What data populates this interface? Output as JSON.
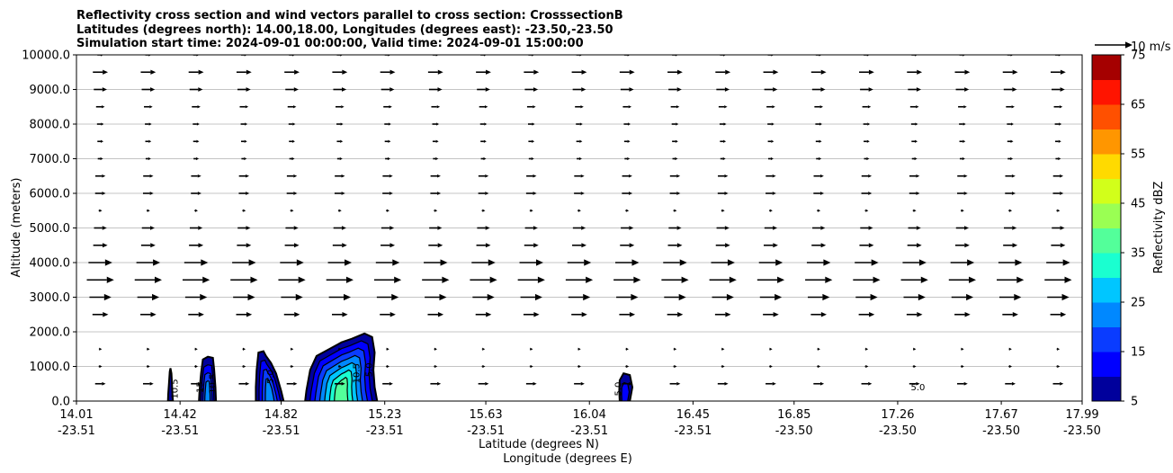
{
  "chart_data": {
    "type": "heatmap",
    "title_lines": [
      "Reflectivity cross section and wind vectors parallel to cross section: CrosssectionB",
      "Latitudes (degrees north): 14.00,18.00, Longitudes (degrees east): -23.50,-23.50",
      "Simulation start time: 2024-09-01 00:00:00, Valid time: 2024-09-01 15:00:00"
    ],
    "xlabel_primary": "Latitude (degrees N)",
    "xlabel_secondary": "Longitude (degrees E)",
    "ylabel": "Altitude (meters)",
    "xlim": [
      14.01,
      17.99
    ],
    "ylim": [
      0,
      10000
    ],
    "x_ticks": [
      {
        "value": 14.01,
        "lat": "14.01",
        "lon": "-23.51"
      },
      {
        "value": 14.42,
        "lat": "14.42",
        "lon": "-23.51"
      },
      {
        "value": 14.82,
        "lat": "14.82",
        "lon": "-23.51"
      },
      {
        "value": 15.23,
        "lat": "15.23",
        "lon": "-23.51"
      },
      {
        "value": 15.63,
        "lat": "15.63",
        "lon": "-23.51"
      },
      {
        "value": 16.04,
        "lat": "16.04",
        "lon": "-23.51"
      },
      {
        "value": 16.45,
        "lat": "16.45",
        "lon": "-23.51"
      },
      {
        "value": 16.85,
        "lat": "16.85",
        "lon": "-23.50"
      },
      {
        "value": 17.26,
        "lat": "17.26",
        "lon": "-23.50"
      },
      {
        "value": 17.67,
        "lat": "17.67",
        "lon": "-23.50"
      },
      {
        "value": 17.99,
        "lat": "17.99",
        "lon": "-23.50"
      }
    ],
    "y_ticks": [
      {
        "value": 0,
        "label": "0.0"
      },
      {
        "value": 1000,
        "label": "1000.0"
      },
      {
        "value": 2000,
        "label": "2000.0"
      },
      {
        "value": 3000,
        "label": "3000.0"
      },
      {
        "value": 4000,
        "label": "4000.0"
      },
      {
        "value": 5000,
        "label": "5000.0"
      },
      {
        "value": 6000,
        "label": "6000.0"
      },
      {
        "value": 7000,
        "label": "7000.0"
      },
      {
        "value": 8000,
        "label": "8000.0"
      },
      {
        "value": 9000,
        "label": "9000.0"
      },
      {
        "value": 10000,
        "label": "10000.0"
      }
    ],
    "grid": "horizontal",
    "colorbar": {
      "label": "Reflectivity dBZ",
      "range": [
        5,
        75
      ],
      "tick_labels": [
        "5",
        "15",
        "25",
        "35",
        "45",
        "55",
        "65",
        "75"
      ],
      "tick_values": [
        5,
        15,
        25,
        35,
        45,
        55,
        65,
        75
      ],
      "levels": [
        5,
        10,
        15,
        20,
        25,
        30,
        35,
        40,
        45,
        50,
        55,
        60,
        65,
        70,
        75
      ],
      "colors": [
        "#00009c",
        "#0000ff",
        "#0a3cff",
        "#0088ff",
        "#00c6ff",
        "#1affd0",
        "#53ff9a",
        "#9aff53",
        "#d2ff1a",
        "#ffda00",
        "#ff9600",
        "#ff5000",
        "#ff1400",
        "#a50000"
      ]
    },
    "wind_key": {
      "label": "10 m/s",
      "speed": 10
    },
    "wind_rows": [
      {
        "z": 500,
        "u": 2.8
      },
      {
        "z": 1000,
        "u": 0.9
      },
      {
        "z": 1500,
        "u": 0.8
      },
      {
        "z": 2500,
        "u": 4.2
      },
      {
        "z": 3000,
        "u": 5.8
      },
      {
        "z": 3500,
        "u": 7.2
      },
      {
        "z": 4000,
        "u": 6.3
      },
      {
        "z": 4500,
        "u": 3.8
      },
      {
        "z": 5000,
        "u": 3.4
      },
      {
        "z": 5500,
        "u": 0.9
      },
      {
        "z": 6000,
        "u": 2.8
      },
      {
        "z": 6500,
        "u": 2.7
      },
      {
        "z": 7000,
        "u": 1.4
      },
      {
        "z": 7500,
        "u": 1.6
      },
      {
        "z": 8000,
        "u": 1.8
      },
      {
        "z": 8500,
        "u": 2.3
      },
      {
        "z": 9000,
        "u": 3.5
      },
      {
        "z": 9500,
        "u": 4.0
      },
      {
        "z": 10000,
        "u": 1.6
      }
    ],
    "cells": [
      {
        "name": "cell-a",
        "x_left": 14.385,
        "x_right": 14.405,
        "top": 950,
        "max_dbz": 10,
        "outline": [
          [
            14.372,
            0
          ],
          [
            14.373,
            200
          ],
          [
            14.376,
            500
          ],
          [
            14.379,
            850
          ],
          [
            14.382,
            950
          ],
          [
            14.386,
            800
          ],
          [
            14.388,
            500
          ],
          [
            14.39,
            200
          ],
          [
            14.392,
            0
          ]
        ],
        "labels": [
          {
            "x": 14.41,
            "z": 350,
            "text": "10.5",
            "rot": -90
          }
        ]
      },
      {
        "name": "cell-b",
        "outline": [
          [
            14.495,
            0
          ],
          [
            14.497,
            300
          ],
          [
            14.503,
            800
          ],
          [
            14.51,
            1200
          ],
          [
            14.53,
            1280
          ],
          [
            14.55,
            1250
          ],
          [
            14.555,
            900
          ],
          [
            14.56,
            400
          ],
          [
            14.562,
            0
          ]
        ],
        "max_dbz": 25,
        "labels": [
          {
            "x": 14.51,
            "z": 400,
            "text": "15",
            "rot": -90
          },
          {
            "x": 14.56,
            "z": 500,
            "text": "10.5",
            "rot": -90
          }
        ]
      },
      {
        "name": "cell-c",
        "outline": [
          [
            14.72,
            0
          ],
          [
            14.72,
            400
          ],
          [
            14.723,
            900
          ],
          [
            14.73,
            1400
          ],
          [
            14.75,
            1440
          ],
          [
            14.76,
            1300
          ],
          [
            14.78,
            1100
          ],
          [
            14.8,
            800
          ],
          [
            14.82,
            300
          ],
          [
            14.83,
            0
          ]
        ],
        "max_dbz": 25,
        "labels": [
          {
            "x": 14.79,
            "z": 700,
            "text": "5.0",
            "rot": -90
          }
        ]
      },
      {
        "name": "cell-d",
        "outline": [
          [
            14.915,
            0
          ],
          [
            14.92,
            300
          ],
          [
            14.935,
            900
          ],
          [
            14.96,
            1300
          ],
          [
            15.01,
            1500
          ],
          [
            15.06,
            1700
          ],
          [
            15.1,
            1800
          ],
          [
            15.15,
            1950
          ],
          [
            15.18,
            1850
          ],
          [
            15.19,
            1400
          ],
          [
            15.185,
            900
          ],
          [
            15.19,
            400
          ],
          [
            15.2,
            0
          ]
        ],
        "max_dbz": 40,
        "labels": [
          {
            "x": 15.13,
            "z": 800,
            "text": "10.5",
            "rot": -90
          },
          {
            "x": 15.18,
            "z": 900,
            "text": "5.0",
            "rot": -90
          }
        ]
      },
      {
        "name": "cell-e",
        "outline": [
          [
            16.16,
            0
          ],
          [
            16.158,
            300
          ],
          [
            16.16,
            600
          ],
          [
            16.175,
            800
          ],
          [
            16.2,
            750
          ],
          [
            16.21,
            400
          ],
          [
            16.2,
            0
          ]
        ],
        "max_dbz": 15,
        "labels": [
          {
            "x": 16.165,
            "z": 350,
            "text": "5.0",
            "rot": -90
          }
        ]
      }
    ],
    "annotations": [
      {
        "x": 17.34,
        "z": 420,
        "text": "5.0"
      }
    ]
  }
}
